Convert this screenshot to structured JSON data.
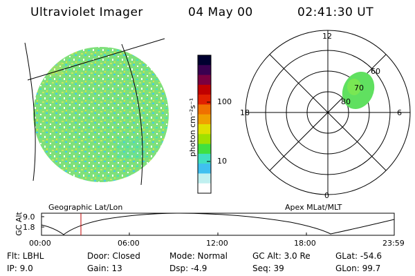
{
  "header": {
    "instrument": "Ultraviolet Imager",
    "date": "04 May 00",
    "time": "02:41:30 UT"
  },
  "image_panel": {
    "label": "Geographic Lat/Lon"
  },
  "colorbar": {
    "label": "photon cm⁻²s⁻¹",
    "ticks": [
      "100",
      "10"
    ],
    "colors": [
      "#000030",
      "#3a0050",
      "#7a0040",
      "#c00000",
      "#e02000",
      "#f07000",
      "#f0a000",
      "#e0e000",
      "#a0e000",
      "#40e040",
      "#40e0c0",
      "#40c0f0",
      "#c0f0f0",
      "#ffffff"
    ]
  },
  "polar_plot": {
    "label": "Apex MLat/MLT",
    "mlt_labels": {
      "top": "12",
      "left": "18",
      "right": "6",
      "bottom": "0"
    },
    "lat_labels": [
      "60",
      "70",
      "80"
    ]
  },
  "timeline": {
    "ylabel": "GC Alt",
    "yticks": [
      "9.0",
      "1.8"
    ],
    "xticks": [
      "00:00",
      "06:00",
      "12:00",
      "18:00",
      "23:59"
    ],
    "marker_time": "02:41"
  },
  "status": {
    "flt": "Flt: LBHL",
    "ip": "IP:  9.0",
    "door": "Door: Closed",
    "gain": "Gain: 13",
    "mode": "Mode: Normal",
    "dsp": "Dsp:   -4.9",
    "gc_alt": "GC Alt: 3.0 Re",
    "seq": "Seq: 39",
    "glat": "GLat: -54.6",
    "glon": "GLon:  99.7"
  }
}
